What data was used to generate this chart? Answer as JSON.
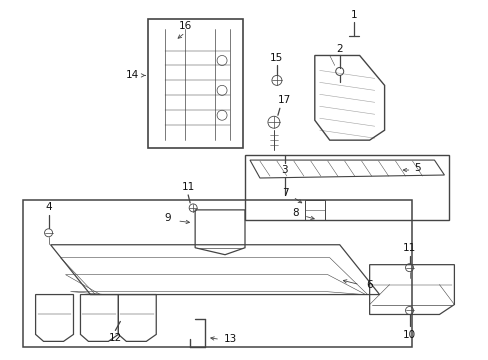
{
  "bg_color": "#ffffff",
  "line_color": "#444444",
  "text_color": "#111111",
  "fig_width": 4.89,
  "fig_height": 3.6,
  "dpi": 100
}
